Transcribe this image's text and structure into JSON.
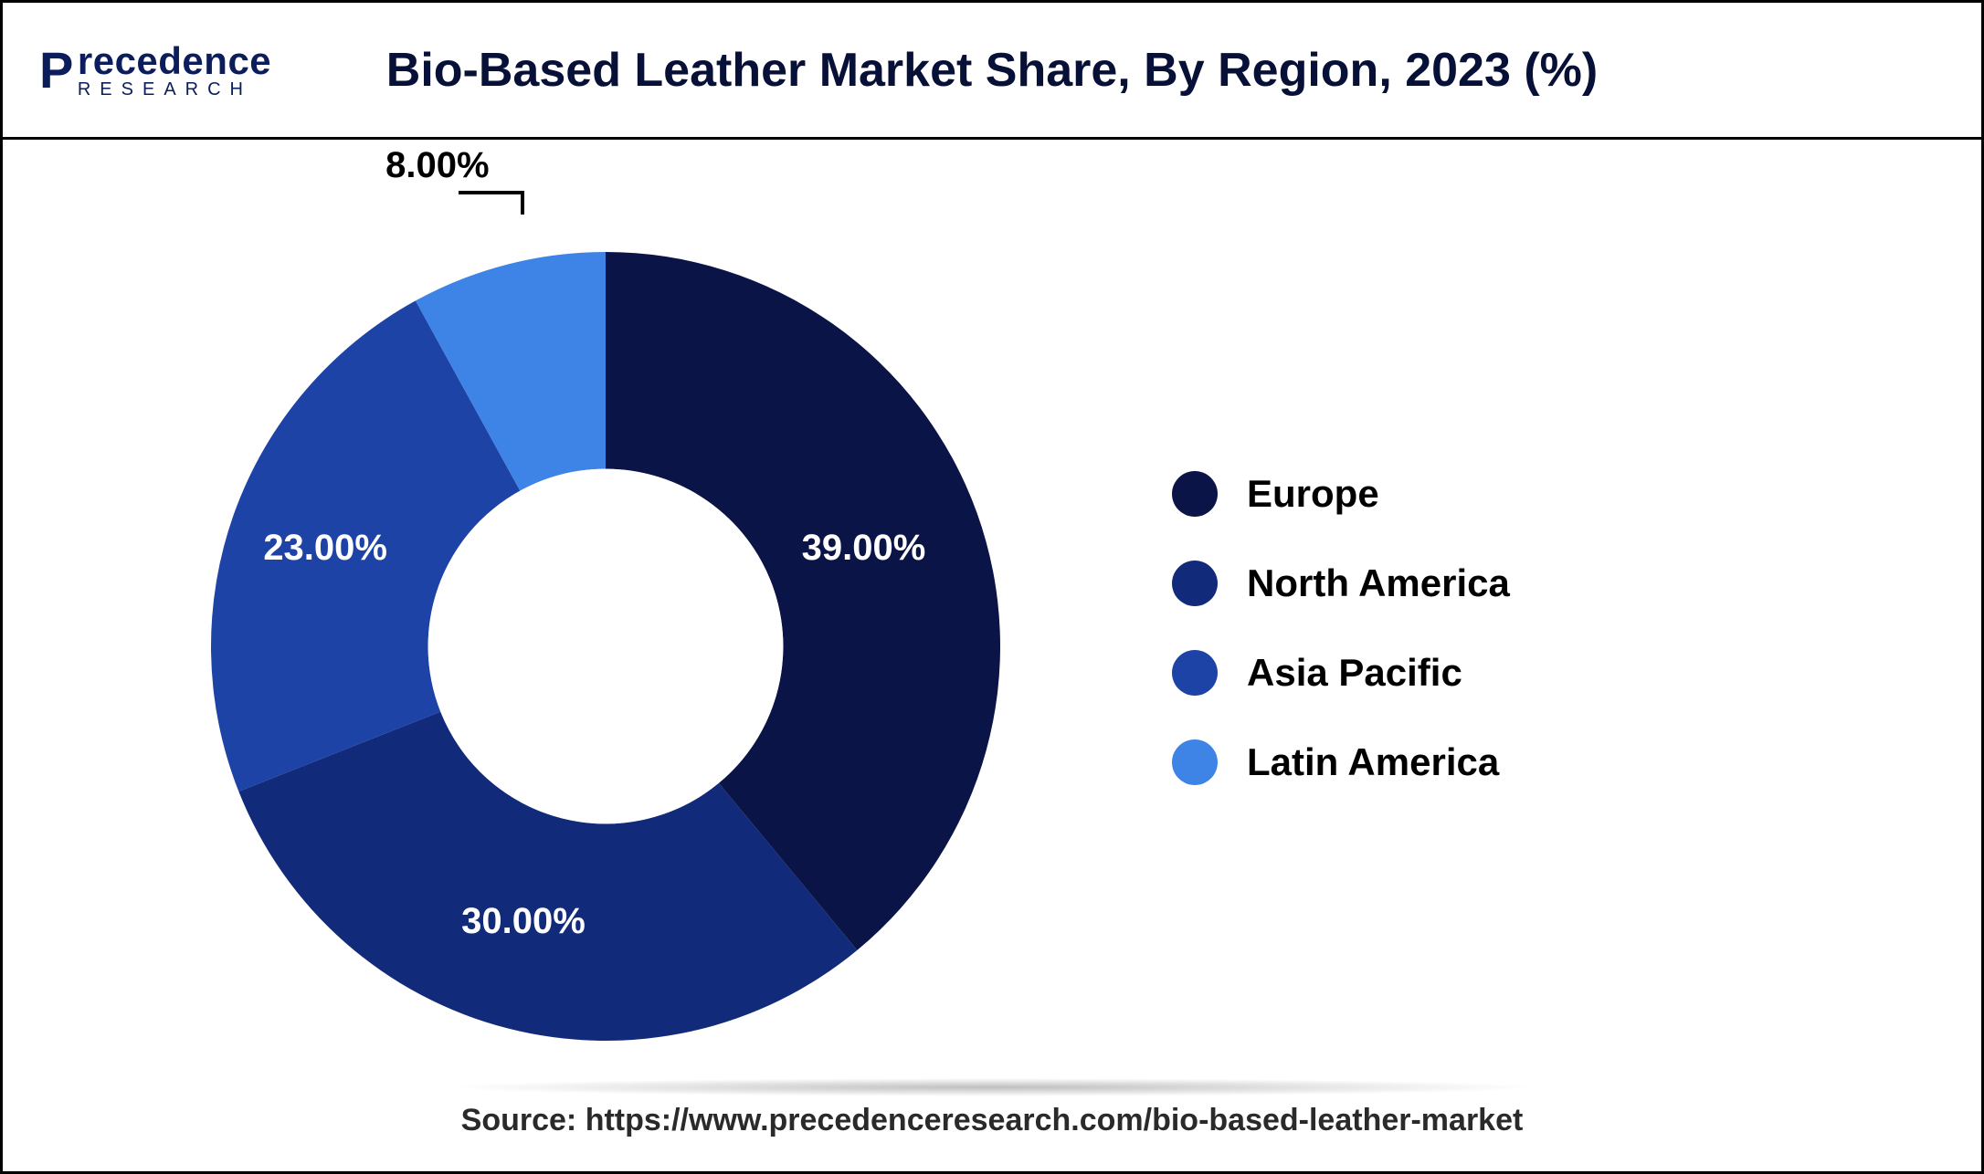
{
  "logo": {
    "main": "recedence",
    "prefix": "P",
    "sub": "RESEARCH"
  },
  "title": "Bio-Based Leather Market Share, By Region, 2023 (%)",
  "chart": {
    "type": "donut",
    "inner_radius_ratio": 0.45,
    "background_color": "#ffffff",
    "slices": [
      {
        "label": "Europe",
        "value": 39.0,
        "display": "39.00%",
        "color": "#0b1447"
      },
      {
        "label": "North America",
        "value": 30.0,
        "display": "30.00%",
        "color": "#122a7a"
      },
      {
        "label": "Asia Pacific",
        "value": 23.0,
        "display": "23.00%",
        "color": "#1e43a6"
      },
      {
        "label": "Latin America",
        "value": 8.0,
        "display": "8.00%",
        "color": "#3d84e6"
      }
    ],
    "label_fontsize": 40,
    "label_color_inside": "#ffffff",
    "label_color_outside": "#000000"
  },
  "legend": {
    "items": [
      {
        "label": "Europe",
        "color": "#0b1447"
      },
      {
        "label": "North America",
        "color": "#122a7a"
      },
      {
        "label": "Asia Pacific",
        "color": "#1e43a6"
      },
      {
        "label": "Latin America",
        "color": "#3d84e6"
      }
    ],
    "fontsize": 42,
    "dot_radius": 25
  },
  "source": "Source: https://www.precedenceresearch.com/bio-based-leather-market"
}
